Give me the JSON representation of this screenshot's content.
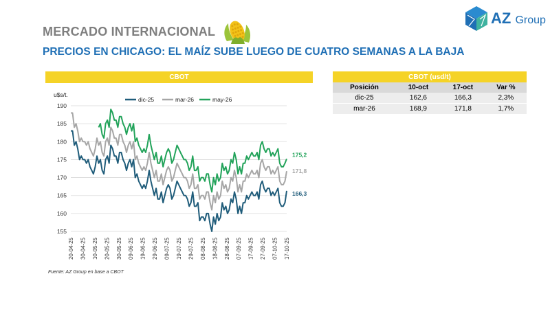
{
  "header": {
    "section": "MERCADO INTERNACIONAL",
    "headline": "PRECIOS EN CHICAGO: EL MAÍZ SUBE LUEGO DE CUATRO SEMANAS A LA BAJA",
    "logo_az": "AZ",
    "logo_group": "Group"
  },
  "chart_panel": {
    "title": "CBOT",
    "source": "Fuente: AZ Group en base a CBOT"
  },
  "table": {
    "title": "CBOT (usd/t)",
    "columns": [
      "Posición",
      "10-oct",
      "17-oct",
      "Var %"
    ],
    "rows": [
      {
        "pos": "dic-25",
        "d1": "162,6",
        "d2": "166,3",
        "var": "2,3%"
      },
      {
        "pos": "mar-26",
        "d1": "168,9",
        "d2": "171,8",
        "var": "1,7%"
      }
    ]
  },
  "colors": {
    "yellow": "#f5d327",
    "blue": "#1f6fb5",
    "green": "#22a35a",
    "grey": "#a6a6a6",
    "navy": "#1f5c7a"
  },
  "chart_data": {
    "type": "line",
    "ylabel": "u$s/t.",
    "ylim": [
      155,
      190
    ],
    "yticks": [
      155,
      160,
      165,
      170,
      175,
      180,
      185,
      190
    ],
    "x_start": 0,
    "x_end": 124,
    "xtick_labels": [
      "20-04-25",
      "30-04-25",
      "10-05-25",
      "20-05-25",
      "30-05-25",
      "09-06-25",
      "19-06-25",
      "29-06-25",
      "09-07-25",
      "19-07-25",
      "29-07-25",
      "08-08-25",
      "18-08-25",
      "28-08-25",
      "07-09-25",
      "17-09-25",
      "27-09-25",
      "07-10-25",
      "17-10-25"
    ],
    "series": [
      {
        "name": "dic-25",
        "color": "#1f5c7a",
        "end_label": "166,3",
        "x": [
          0,
          1,
          2,
          3,
          4,
          5,
          6,
          7,
          8,
          9,
          10,
          11,
          12,
          13,
          14,
          15,
          16,
          17,
          18,
          19,
          20,
          21,
          22,
          23,
          24,
          25,
          26,
          27,
          28,
          29,
          30,
          31,
          32,
          33,
          34,
          35,
          36,
          37,
          38,
          39,
          40,
          41,
          42,
          43,
          44,
          45,
          46,
          47,
          48,
          49,
          50,
          51,
          52,
          53,
          54,
          55,
          56,
          57,
          58,
          59,
          60,
          61,
          62,
          63,
          64,
          65,
          66,
          67,
          68,
          69,
          70,
          71,
          72,
          73,
          74,
          75,
          76,
          77,
          78,
          79,
          80,
          81,
          82,
          83,
          84,
          85,
          86,
          87,
          88,
          89,
          90,
          91,
          92,
          93,
          94,
          95,
          96,
          97,
          98,
          99,
          100,
          101,
          102,
          103,
          104,
          105,
          106,
          107,
          108,
          109,
          110,
          111,
          112,
          113,
          114,
          115,
          116,
          117,
          118,
          119,
          120,
          121,
          122,
          123,
          124
        ],
        "values": [
          183,
          183,
          179,
          180,
          178,
          175,
          176,
          175,
          175,
          174,
          175,
          173,
          172,
          171,
          173,
          176,
          174,
          175,
          172,
          171,
          175,
          176,
          174,
          179,
          178,
          176,
          176,
          174,
          177,
          177,
          175,
          174,
          172,
          174,
          175,
          173,
          175,
          170,
          171,
          169,
          168,
          167,
          168,
          167,
          169,
          172,
          169,
          167,
          165,
          167,
          164,
          164,
          166,
          163,
          165,
          167,
          168,
          167,
          164,
          165,
          167,
          169,
          168,
          167,
          166,
          165,
          165,
          164,
          162,
          163,
          166,
          162,
          162,
          163,
          158,
          159,
          159,
          158,
          160,
          160,
          157,
          155,
          159,
          157,
          160,
          158,
          159,
          163,
          161,
          162,
          160,
          161,
          164,
          163,
          166,
          164,
          160,
          162,
          160,
          163,
          163,
          165,
          164,
          165,
          166,
          165,
          165,
          166,
          164,
          168,
          169,
          167,
          166,
          167,
          167,
          165,
          166,
          165,
          166,
          167,
          163,
          162,
          162,
          163,
          166.3
        ]
      },
      {
        "name": "mar-26",
        "color": "#a6a6a6",
        "end_label": "171,8",
        "x": [
          0,
          1,
          2,
          3,
          4,
          5,
          6,
          7,
          8,
          9,
          10,
          11,
          12,
          13,
          14,
          15,
          16,
          17,
          18,
          19,
          20,
          21,
          22,
          23,
          24,
          25,
          26,
          27,
          28,
          29,
          30,
          31,
          32,
          33,
          34,
          35,
          36,
          37,
          38,
          39,
          40,
          41,
          42,
          43,
          44,
          45,
          46,
          47,
          48,
          49,
          50,
          51,
          52,
          53,
          54,
          55,
          56,
          57,
          58,
          59,
          60,
          61,
          62,
          63,
          64,
          65,
          66,
          67,
          68,
          69,
          70,
          71,
          72,
          73,
          74,
          75,
          76,
          77,
          78,
          79,
          80,
          81,
          82,
          83,
          84,
          85,
          86,
          87,
          88,
          89,
          90,
          91,
          92,
          93,
          94,
          95,
          96,
          97,
          98,
          99,
          100,
          101,
          102,
          103,
          104,
          105,
          106,
          107,
          108,
          109,
          110,
          111,
          112,
          113,
          114,
          115,
          116,
          117,
          118,
          119,
          120,
          121,
          122,
          123,
          124
        ],
        "values": [
          188,
          188,
          184,
          185,
          183,
          180,
          181,
          180,
          180,
          179,
          180,
          178,
          177,
          176,
          178,
          181,
          179,
          180,
          177,
          176,
          180,
          181,
          179,
          184,
          183,
          181,
          181,
          179,
          182,
          182,
          180,
          179,
          177,
          179,
          180,
          178,
          180,
          175,
          176,
          174,
          173,
          172,
          173,
          172,
          174,
          177,
          174,
          172,
          170,
          172,
          169,
          169,
          171,
          168,
          170,
          172,
          173,
          172,
          169,
          170,
          172,
          174,
          173,
          172,
          171,
          170,
          170,
          169,
          167,
          168,
          171,
          167,
          167,
          168,
          164,
          165,
          165,
          164,
          166,
          166,
          163,
          161,
          165,
          163,
          166,
          164,
          165,
          169,
          167,
          168,
          166,
          167,
          170,
          169,
          172,
          170,
          166,
          168,
          166,
          169,
          169,
          171,
          170,
          171,
          172,
          171,
          171,
          172,
          170,
          174,
          175,
          173,
          172,
          173,
          173,
          171,
          172,
          171,
          172,
          173,
          169,
          168,
          168,
          169,
          171.8
        ]
      },
      {
        "name": "may-26",
        "color": "#22a35a",
        "end_label": "175,2",
        "x": [
          16,
          17,
          18,
          19,
          20,
          21,
          22,
          23,
          24,
          25,
          26,
          27,
          28,
          29,
          30,
          31,
          32,
          33,
          34,
          35,
          36,
          37,
          38,
          39,
          40,
          41,
          42,
          43,
          44,
          45,
          46,
          47,
          48,
          49,
          50,
          51,
          52,
          53,
          54,
          55,
          56,
          57,
          58,
          59,
          60,
          61,
          62,
          63,
          64,
          65,
          66,
          67,
          68,
          69,
          70,
          71,
          72,
          73,
          74,
          75,
          76,
          77,
          78,
          79,
          80,
          81,
          82,
          83,
          84,
          85,
          86,
          87,
          88,
          89,
          90,
          91,
          92,
          93,
          94,
          95,
          96,
          97,
          98,
          99,
          100,
          101,
          102,
          103,
          104,
          105,
          106,
          107,
          108,
          109,
          110,
          111,
          112,
          113,
          114,
          115,
          116,
          117,
          118,
          119,
          120,
          121,
          122,
          123,
          124
        ],
        "values": [
          184,
          185,
          182,
          181,
          185,
          186,
          184,
          189,
          188,
          186,
          186,
          184,
          187,
          187,
          185,
          184,
          182,
          184,
          185,
          183,
          185,
          180,
          181,
          179,
          178,
          177,
          178,
          177,
          179,
          182,
          179,
          177,
          175,
          177,
          174,
          174,
          176,
          173,
          175,
          177,
          178,
          177,
          174,
          175,
          177,
          179,
          178,
          177,
          176,
          175,
          175,
          174,
          172,
          173,
          176,
          172,
          172,
          173,
          169,
          170,
          170,
          169,
          171,
          171,
          168,
          166,
          170,
          168,
          171,
          169,
          170,
          174,
          172,
          173,
          171,
          172,
          175,
          174,
          177,
          175,
          171,
          173,
          171,
          174,
          174,
          176,
          175,
          176,
          177,
          176,
          176,
          177,
          175,
          179,
          180,
          178,
          177,
          178,
          178,
          176,
          177,
          176,
          177,
          178,
          174,
          173,
          173,
          174,
          175.2
        ]
      }
    ]
  }
}
